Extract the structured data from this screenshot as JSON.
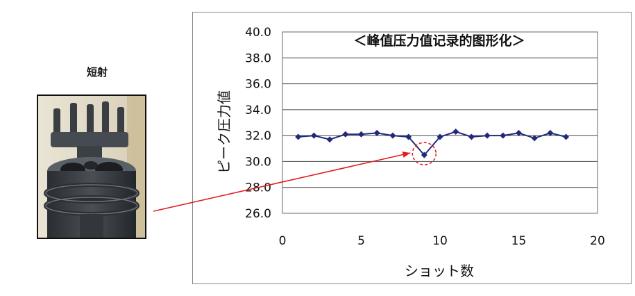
{
  "photo": {
    "caption": "短射"
  },
  "chart_data": {
    "type": "line",
    "title": "＜峰值压力值记录的图形化＞",
    "xlabel": "ショット数",
    "ylabel": "ピーク圧力値",
    "xlim": [
      0,
      20
    ],
    "ylim": [
      26.0,
      40.0
    ],
    "x_ticks": [
      "0",
      "5",
      "10",
      "15",
      "20"
    ],
    "y_ticks": [
      "40.0",
      "38.0",
      "36.0",
      "34.0",
      "32.0",
      "30.0",
      "28.0",
      "26.0"
    ],
    "grid": "horizontal",
    "series": [
      {
        "color": "#1f2a7a",
        "x": [
          1,
          2,
          3,
          4,
          5,
          6,
          7,
          8,
          9,
          10,
          11,
          12,
          13,
          14,
          15,
          16,
          17,
          18
        ],
        "values": [
          31.9,
          32.0,
          31.7,
          32.1,
          32.1,
          32.2,
          32.0,
          31.9,
          30.5,
          31.9,
          32.3,
          31.9,
          32.0,
          32.0,
          32.2,
          31.8,
          32.2,
          31.9
        ]
      }
    ],
    "annotation": {
      "x": 9,
      "y": 30.5,
      "shape": "dashed-circle",
      "color": "#e02020"
    }
  }
}
